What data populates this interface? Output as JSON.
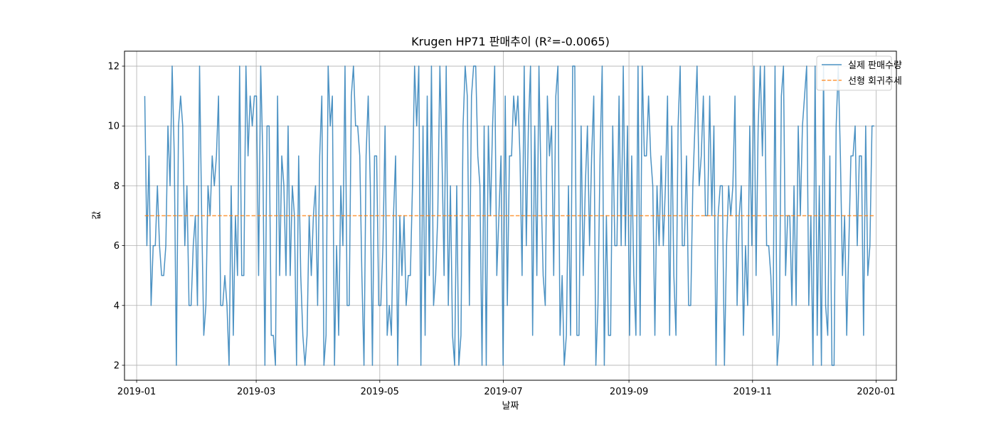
{
  "chart_data": {
    "type": "line",
    "title": "Krugen HP71 판매추이 (R²=-0.0065)",
    "xlabel": "날짜",
    "ylabel": "값",
    "x_ticks": [
      "2019-01",
      "2019-03",
      "2019-05",
      "2019-07",
      "2019-09",
      "2019-11",
      "2020-01"
    ],
    "y_ticks": [
      2,
      4,
      6,
      8,
      10,
      12
    ],
    "xlim": [
      "2018-12-26",
      "2020-01-11"
    ],
    "ylim": [
      1.5,
      12.5
    ],
    "grid": true,
    "legend_position": "top-right",
    "x_start": "2019-01-05",
    "x_end": "2019-12-31",
    "series": [
      {
        "name": "실제 판매수량",
        "style": "solid",
        "color": "#1f77b4",
        "values": [
          11,
          6,
          9,
          4,
          6,
          6,
          8,
          6,
          5,
          5,
          6,
          10,
          8,
          12,
          9,
          2,
          10,
          11,
          10,
          6,
          8,
          4,
          4,
          6,
          7,
          4,
          12,
          7,
          3,
          4,
          8,
          7,
          9,
          8,
          9,
          11,
          4,
          4,
          5,
          4,
          2,
          8,
          3,
          7,
          5,
          12,
          5,
          5,
          12,
          9,
          11,
          10,
          11,
          11,
          5,
          12,
          9,
          2,
          10,
          10,
          3,
          3,
          2,
          11,
          5,
          9,
          8,
          5,
          10,
          5,
          8,
          7,
          2,
          9,
          5,
          3,
          2,
          3,
          7,
          5,
          7,
          8,
          4,
          9,
          11,
          2,
          3,
          12,
          10,
          11,
          2,
          6,
          3,
          8,
          6,
          12,
          4,
          4,
          11,
          12,
          10,
          10,
          9,
          5,
          2,
          9,
          11,
          8,
          2,
          9,
          9,
          4,
          4,
          6,
          10,
          3,
          4,
          3,
          7,
          9,
          2,
          7,
          5,
          7,
          4,
          5,
          5,
          8,
          12,
          10,
          12,
          2,
          10,
          3,
          11,
          5,
          12,
          4,
          5,
          7,
          12,
          9,
          5,
          12,
          4,
          8,
          3,
          2,
          8,
          2,
          3,
          10,
          12,
          11,
          4,
          11,
          12,
          12,
          9,
          8,
          2,
          10,
          2,
          10,
          7,
          10,
          12,
          5,
          7,
          9,
          2,
          11,
          4,
          9,
          9,
          11,
          10,
          11,
          9,
          5,
          12,
          6,
          10,
          12,
          3,
          10,
          5,
          12,
          8,
          5,
          4,
          11,
          9,
          10,
          5,
          11,
          12,
          3,
          5,
          2,
          3,
          8,
          3,
          12,
          12,
          3,
          3,
          10,
          5,
          8,
          10,
          6,
          9,
          11,
          2,
          4,
          9,
          12,
          2,
          7,
          3,
          3,
          10,
          6,
          6,
          11,
          6,
          12,
          6,
          10,
          3,
          9,
          5,
          3,
          12,
          3,
          12,
          9,
          9,
          11,
          9,
          8,
          3,
          8,
          6,
          9,
          6,
          8,
          11,
          3,
          10,
          5,
          3,
          10,
          12,
          6,
          6,
          9,
          4,
          4,
          8,
          10,
          12,
          8,
          9,
          11,
          7,
          7,
          11,
          7,
          10,
          2,
          7,
          8,
          8,
          2,
          6,
          8,
          7,
          8,
          11,
          4,
          7,
          8,
          3,
          6,
          4,
          10,
          6,
          12,
          5,
          10,
          12,
          9,
          12,
          6,
          6,
          5,
          3,
          12,
          2,
          3,
          11,
          12,
          5,
          7,
          7,
          4,
          8,
          4,
          10,
          7,
          10,
          11,
          12,
          4,
          7,
          2,
          12,
          3,
          8,
          2,
          12,
          4,
          3,
          9,
          2,
          2,
          10,
          12,
          9,
          5,
          7,
          3,
          6,
          9,
          9,
          10,
          6,
          9,
          9,
          3,
          10,
          5,
          6,
          10,
          10
        ],
        "xlabels": []
      },
      {
        "name": "선형 회귀추세",
        "style": "dashed",
        "color": "#ff7f0e",
        "values": [
          7.0,
          7.0
        ]
      }
    ]
  }
}
